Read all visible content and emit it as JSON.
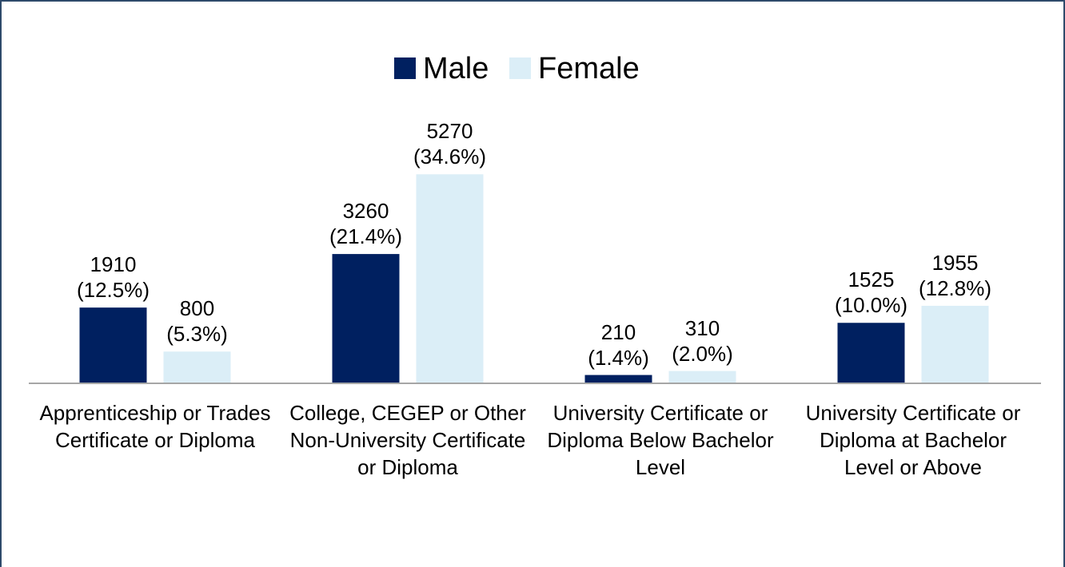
{
  "chart_data": {
    "type": "bar",
    "categories": [
      "Apprenticeship or Trades Certificate or Diploma",
      "College, CEGEP or Other Non-University Certificate or Diploma",
      "University Certificate or Diploma Below Bachelor Level",
      "University Certificate or Diploma at Bachelor Level or Above"
    ],
    "series": [
      {
        "name": "Male",
        "color": "#002060",
        "values": [
          1910,
          3260,
          210,
          1525
        ],
        "value_labels": [
          "1910 (12.5%)",
          "3260 (21.4%)",
          "210 (1.4%)",
          "1525 (10.0%)"
        ]
      },
      {
        "name": "Female",
        "color": "#dbeef7",
        "values": [
          800,
          5270,
          310,
          1955
        ],
        "value_labels": [
          "800 (5.3%)",
          "5270 (34.6%)",
          "310 (2.0%)",
          "1955 (12.8%)"
        ]
      }
    ],
    "ylim": [
      0,
      6000
    ],
    "legend": "top"
  }
}
